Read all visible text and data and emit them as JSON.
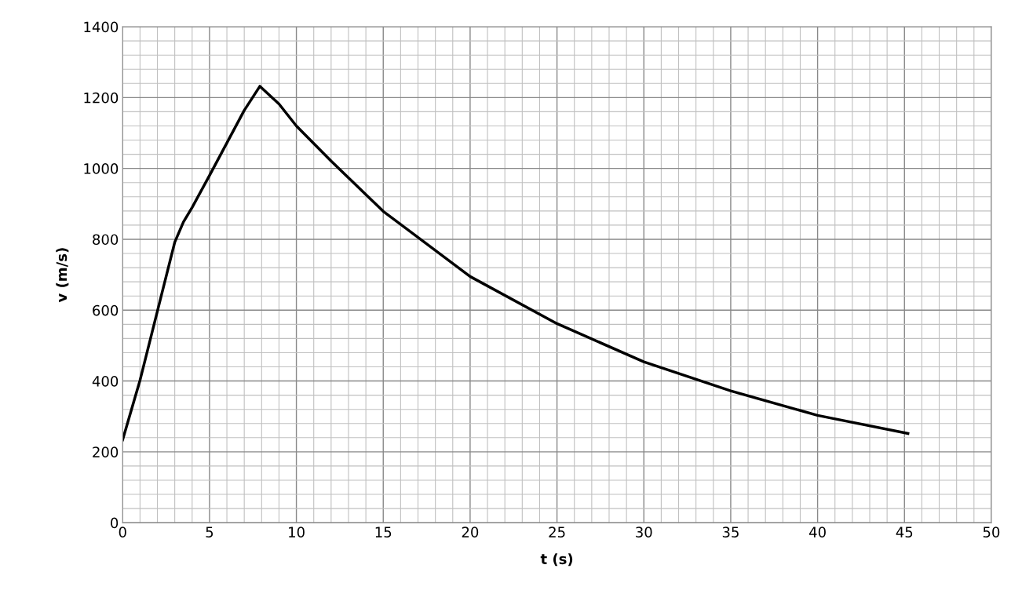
{
  "chart_data": {
    "type": "line",
    "xlabel": "t (s)",
    "ylabel": "v (m/s)",
    "series": [
      {
        "color": "#000000",
        "x": [
          0,
          1,
          2,
          3,
          3.5,
          4,
          5,
          6,
          7,
          7.9,
          9,
          10,
          12,
          15,
          20,
          25,
          30,
          35,
          40,
          45.2
        ],
        "values": [
          234,
          402,
          597,
          792,
          849,
          890,
          980,
          1072,
          1164,
          1232,
          1182,
          1120,
          1021,
          879,
          695,
          562,
          454,
          372,
          303,
          252
        ]
      }
    ],
    "xlim": [
      0,
      50
    ],
    "xticks": [
      0,
      5,
      10,
      15,
      20,
      25,
      30,
      35,
      40,
      45,
      50
    ],
    "ylim": [
      0,
      1400
    ],
    "yticks": [
      0,
      200,
      400,
      600,
      800,
      1000,
      1200,
      1400
    ],
    "grid": true,
    "marker": "none",
    "line_style": "solid"
  }
}
